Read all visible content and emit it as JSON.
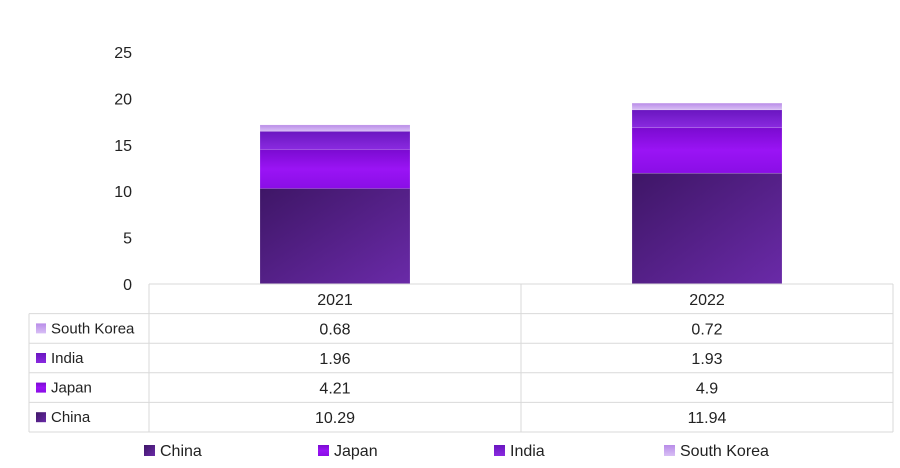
{
  "chart_data": {
    "type": "bar",
    "stacked": true,
    "categories": [
      "2021",
      "2022"
    ],
    "series": [
      {
        "name": "China",
        "values": [
          10.29,
          11.94
        ],
        "color": "#5b2291"
      },
      {
        "name": "Japan",
        "values": [
          4.21,
          4.9
        ],
        "color": "#8a0ee6"
      },
      {
        "name": "India",
        "values": [
          1.96,
          1.93
        ],
        "color": "#7a1fd6"
      },
      {
        "name": "South Korea",
        "values": [
          0.68,
          0.72
        ],
        "color": "#c9a7ef"
      }
    ],
    "ylim": [
      0,
      25
    ],
    "yticks": [
      0,
      5,
      10,
      15,
      20,
      25
    ],
    "grid": false,
    "data_table": true,
    "legend": "bottom",
    "title": "",
    "xlabel": "",
    "ylabel": ""
  }
}
